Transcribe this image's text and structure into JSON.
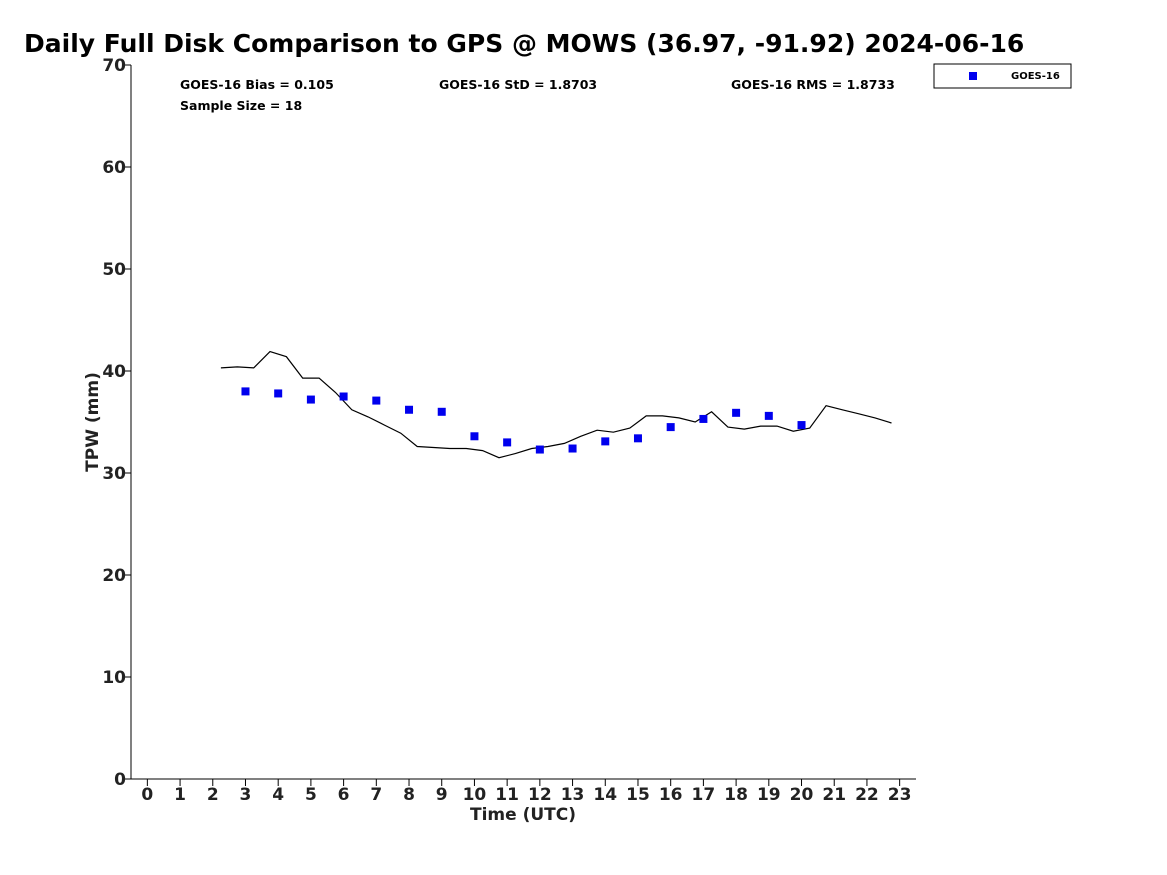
{
  "chart_data": {
    "type": "scatter",
    "title": "Daily Full Disk Comparison to GPS @ MOWS (36.97, -91.92) 2024-06-16",
    "xlabel": "Time (UTC)",
    "ylabel": "TPW (mm)",
    "xlim": [
      -0.5,
      23.5
    ],
    "ylim": [
      0,
      70
    ],
    "xticks": [
      0,
      1,
      2,
      3,
      4,
      5,
      6,
      7,
      8,
      9,
      10,
      11,
      12,
      13,
      14,
      15,
      16,
      17,
      18,
      19,
      20,
      21,
      22,
      23
    ],
    "yticks": [
      0,
      10,
      20,
      30,
      40,
      50,
      60,
      70
    ],
    "grid": false,
    "legend_position": "top-right-outside",
    "stats": {
      "bias": "GOES-16 Bias = 0.105",
      "sample_size": "Sample Size = 18",
      "std": "GOES-16 StD = 1.8703",
      "rms": "GOES-16 RMS = 1.8733"
    },
    "series": [
      {
        "name": "GOES-16",
        "kind": "scatter",
        "color": "#0000ee",
        "x": [
          3,
          4,
          5,
          6,
          7,
          8,
          9,
          10,
          11,
          12,
          13,
          14,
          15,
          16,
          17,
          18,
          19,
          20
        ],
        "y": [
          38.0,
          37.8,
          37.2,
          37.5,
          37.1,
          36.2,
          36.0,
          33.6,
          33.0,
          32.3,
          32.4,
          33.1,
          33.4,
          34.5,
          35.3,
          35.9,
          35.6,
          34.7
        ]
      },
      {
        "kind": "line",
        "color": "#000000",
        "x": [
          2.25,
          2.75,
          3.25,
          3.75,
          4.25,
          4.75,
          5.25,
          5.75,
          6.25,
          6.75,
          7.25,
          7.75,
          8.25,
          8.75,
          9.25,
          9.75,
          10.25,
          10.75,
          11.25,
          11.75,
          12.25,
          12.75,
          13.25,
          13.75,
          14.25,
          14.75,
          15.25,
          15.75,
          16.25,
          16.75,
          17.25,
          17.75,
          18.25,
          18.75,
          19.25,
          19.75,
          20.25,
          20.75,
          21.25,
          21.75,
          22.25,
          22.75
        ],
        "y": [
          40.3,
          40.4,
          40.3,
          41.9,
          41.4,
          39.3,
          39.3,
          37.9,
          36.2,
          35.5,
          34.7,
          33.9,
          32.6,
          32.5,
          32.4,
          32.4,
          32.2,
          31.5,
          31.9,
          32.4,
          32.6,
          32.9,
          33.6,
          34.2,
          34.0,
          34.4,
          35.6,
          35.6,
          35.4,
          35.0,
          36.0,
          34.5,
          34.3,
          34.6,
          34.6,
          34.1,
          34.4,
          36.6,
          36.2,
          35.8,
          35.4,
          34.9
        ]
      }
    ]
  }
}
